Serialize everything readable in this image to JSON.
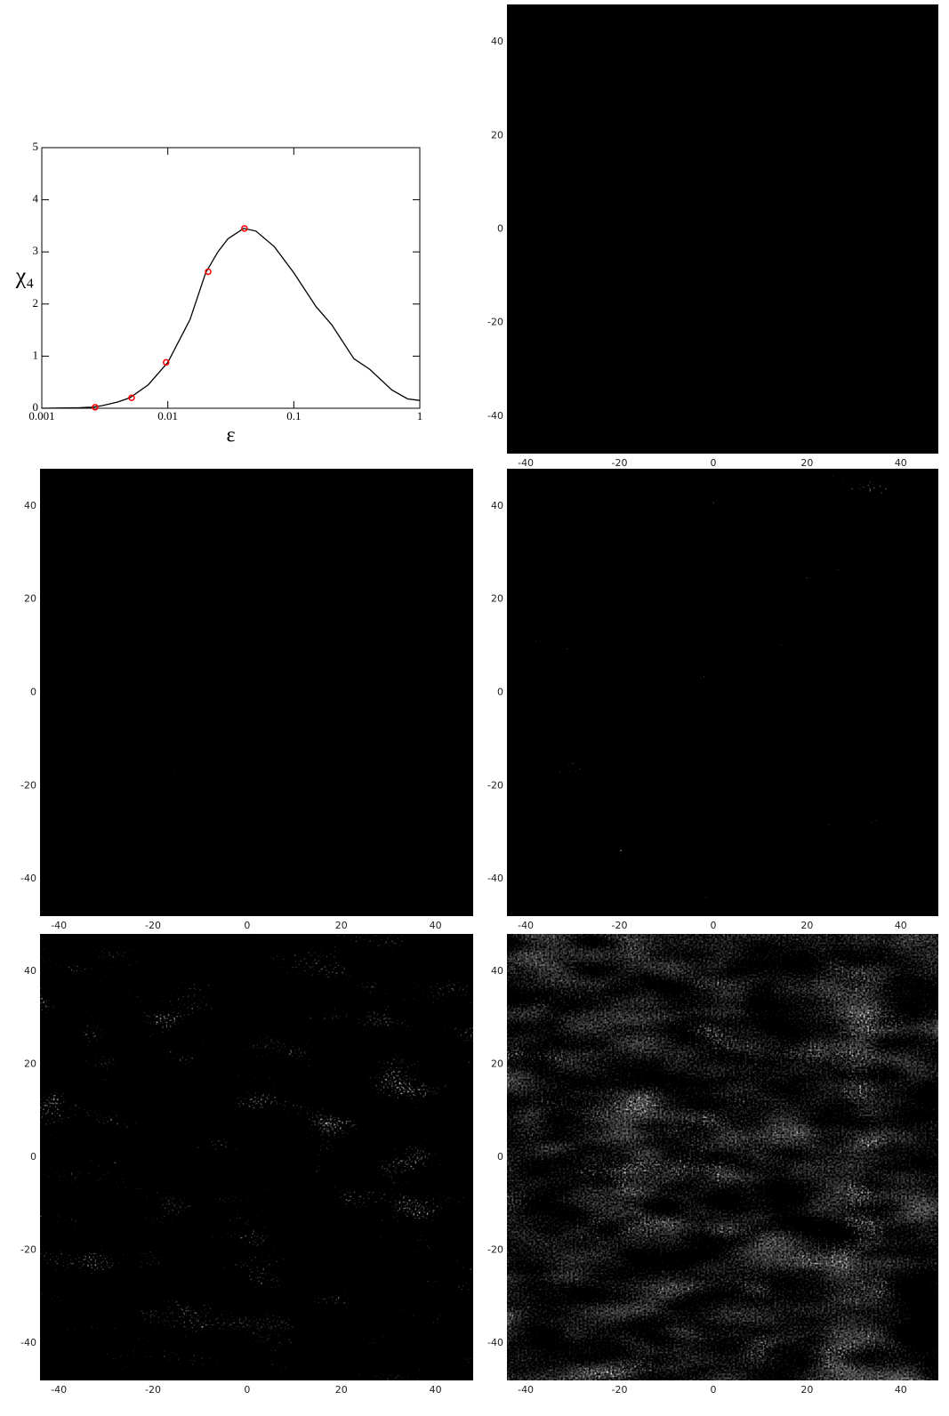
{
  "chart_data": [
    {
      "type": "line",
      "xscale": "log",
      "xlim": [
        0.001,
        1
      ],
      "ylim": [
        0,
        5
      ],
      "xticks": [
        0.001,
        0.01,
        0.1,
        1
      ],
      "yticks": [
        0,
        1,
        2,
        3,
        4,
        5
      ],
      "xlabel": "ε",
      "ylabel": "χ₄",
      "series": [
        {
          "color": "#000000",
          "marker": "none",
          "x": [
            0.001,
            0.002,
            0.0025,
            0.003,
            0.004,
            0.005,
            0.007,
            0.01,
            0.015,
            0.02,
            0.025,
            0.03,
            0.04,
            0.05,
            0.07,
            0.1,
            0.15,
            0.2,
            0.3,
            0.4,
            0.6,
            0.8,
            1
          ],
          "values": [
            0,
            0.01,
            0.02,
            0.05,
            0.12,
            0.2,
            0.45,
            0.88,
            1.7,
            2.6,
            3.0,
            3.25,
            3.45,
            3.4,
            3.1,
            2.6,
            1.95,
            1.6,
            0.95,
            0.75,
            0.35,
            0.18,
            0.15
          ]
        },
        {
          "color": "#ff0000",
          "marker": "circle",
          "x": [
            0.00265,
            0.00516,
            0.0097,
            0.0209,
            0.0406
          ],
          "values": [
            0.02,
            0.2,
            0.88,
            2.62,
            3.45
          ]
        }
      ]
    },
    {
      "type": "image",
      "xlim": [
        -44,
        48
      ],
      "ylim": [
        -48,
        48
      ],
      "xticks": [
        -40,
        -20,
        0,
        20,
        40
      ],
      "yticks": [
        -40,
        -20,
        0,
        20,
        40
      ]
    },
    {
      "type": "image",
      "xlim": [
        -44,
        48
      ],
      "ylim": [
        -48,
        48
      ],
      "xticks": [
        -40,
        -20,
        0,
        20,
        40
      ],
      "yticks": [
        -40,
        -20,
        0,
        20,
        40
      ]
    },
    {
      "type": "image",
      "xlim": [
        -44,
        48
      ],
      "ylim": [
        -48,
        48
      ],
      "xticks": [
        -40,
        -20,
        0,
        20,
        40
      ],
      "yticks": [
        -40,
        -20,
        0,
        20,
        40
      ]
    },
    {
      "type": "image",
      "xlim": [
        -44,
        48
      ],
      "ylim": [
        -48,
        48
      ],
      "xticks": [
        -40,
        -20,
        0,
        20,
        40
      ],
      "yticks": [
        -40,
        -20,
        0,
        20,
        40
      ]
    },
    {
      "type": "image",
      "xlim": [
        -44,
        48
      ],
      "ylim": [
        -48,
        48
      ],
      "xticks": [
        -40,
        -20,
        0,
        20,
        40
      ],
      "yticks": [
        -40,
        -20,
        0,
        20,
        40
      ]
    }
  ]
}
